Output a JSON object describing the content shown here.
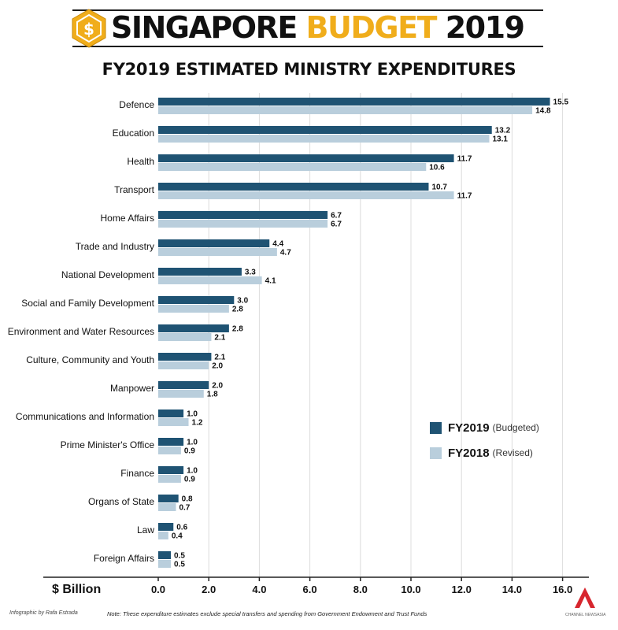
{
  "banner": {
    "title_part1": "SINGAPORE",
    "title_part2": "BUDGET",
    "title_part3": "2019",
    "icon": "dollar-hexagon-icon",
    "icon_glyph": "$",
    "accent_color": "#f0ad1b",
    "text_color": "#111111"
  },
  "footer": {
    "credit": "Infographic by Rafa Estrada",
    "note": "Note: These expenditure estimates exclude special transfers and spending from Government Endowment and Trust Funds",
    "logo": "broadcaster-logo-icon",
    "logo_text": "CHANNEL NEWSASIA"
  },
  "chart_data": {
    "type": "bar",
    "orientation": "horizontal",
    "title": "FY2019 ESTIMATED MINISTRY EXPENDITURES",
    "xlabel": "$ Billion",
    "xlim": [
      0,
      16
    ],
    "xticks": [
      "0.0",
      "2.0",
      "4.0",
      "6.0",
      "8.0",
      "10.0",
      "12.0",
      "14.0",
      "16.0"
    ],
    "grid": true,
    "legend_position": "right",
    "categories": [
      "Defence",
      "Education",
      "Health",
      "Transport",
      "Home Affairs",
      "Trade and Industry",
      "National Development",
      "Social and Family Development",
      "Environment and Water Resources",
      "Culture, Community and Youth",
      "Manpower",
      "Communications and Information",
      "Prime Minister's Office",
      "Finance",
      "Organs of State",
      "Law",
      "Foreign Affairs"
    ],
    "series": [
      {
        "name": "FY2019",
        "note": "(Budgeted)",
        "color": "#1f5373",
        "values": [
          15.5,
          13.2,
          11.7,
          10.7,
          6.7,
          4.4,
          3.3,
          3.0,
          2.8,
          2.1,
          2.0,
          1.0,
          1.0,
          1.0,
          0.8,
          0.6,
          0.5
        ]
      },
      {
        "name": "FY2018",
        "note": "(Revised)",
        "color": "#b9cedc",
        "values": [
          14.8,
          13.1,
          10.6,
          11.7,
          6.7,
          4.7,
          4.1,
          2.8,
          2.1,
          2.0,
          1.8,
          1.2,
          0.9,
          0.9,
          0.7,
          0.4,
          0.5
        ]
      }
    ]
  }
}
